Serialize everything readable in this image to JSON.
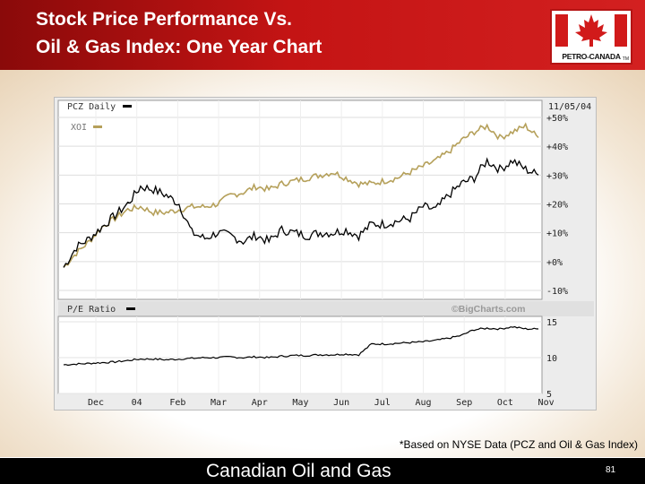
{
  "slide": {
    "title_line1": "Stock Price Performance Vs.",
    "title_line2": "Oil & Gas Index: One Year Chart",
    "footnote": "*Based on NYSE Data (PCZ and Oil & Gas Index)",
    "footer_text": "Canadian Oil and Gas",
    "page_number": "81",
    "logo_text": "PETRO-CANADA",
    "logo_tm": "TM"
  },
  "colors": {
    "header_red": "#c41414",
    "pcz_line": "#000000",
    "xoi_line": "#b5a05a",
    "chart_bg": "#ececec",
    "plot_bg": "#ffffff"
  },
  "chart_data": {
    "type": "line",
    "date_label": "11/05/04",
    "watermark": "©BigCharts.com",
    "x_ticks": [
      "Dec",
      "04",
      "Feb",
      "Mar",
      "Apr",
      "May",
      "Jun",
      "Jul",
      "Aug",
      "Sep",
      "Oct",
      "Nov"
    ],
    "main_panel": {
      "y_ticks": [
        "+50%",
        "+40%",
        "+30%",
        "+20%",
        "+10%",
        "+0%",
        "-10%"
      ],
      "ylim": [
        -10,
        50
      ],
      "series": [
        {
          "name": "PCZ Daily",
          "values": [
            -2,
            5,
            8,
            12,
            16,
            20,
            26,
            25,
            23,
            20,
            10,
            8,
            10,
            9,
            7,
            9,
            7,
            11,
            10,
            9,
            10,
            10,
            11,
            9,
            13,
            13,
            14,
            15,
            19,
            18,
            23,
            27,
            29,
            35,
            32,
            35,
            32,
            30
          ]
        },
        {
          "name": "XOI",
          "values": [
            -2,
            3,
            7,
            12,
            15,
            18,
            19,
            17,
            17,
            18,
            19,
            19,
            20,
            23,
            24,
            26,
            25,
            27,
            28,
            29,
            30,
            31,
            29,
            27,
            27,
            28,
            29,
            31,
            33,
            35,
            38,
            42,
            45,
            47,
            43,
            45,
            47,
            43
          ]
        }
      ]
    },
    "pe_panel": {
      "label": "P/E Ratio",
      "y_ticks": [
        "15",
        "10",
        "5"
      ],
      "ylim": [
        5,
        15
      ],
      "values": [
        9.0,
        9.1,
        9.2,
        9.3,
        9.4,
        9.6,
        9.8,
        9.8,
        9.7,
        9.8,
        9.9,
        10.0,
        10.0,
        10.1,
        10.0,
        10.1,
        10.0,
        10.2,
        10.3,
        10.3,
        10.4,
        10.4,
        10.5,
        10.4,
        11.9,
        11.9,
        12.0,
        12.1,
        12.2,
        12.4,
        12.7,
        13.1,
        13.9,
        14.1,
        14.0,
        14.3,
        14.0,
        14.0
      ]
    }
  }
}
